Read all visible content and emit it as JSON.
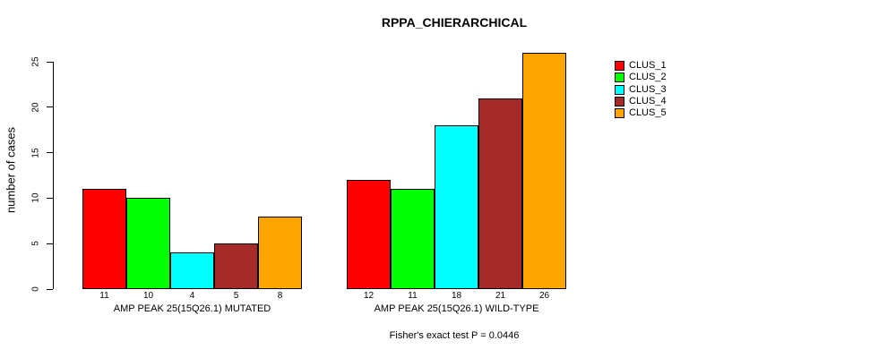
{
  "chart_data": {
    "type": "bar",
    "title": "RPPA_CHIERARCHICAL",
    "ylabel": "number of cases",
    "xlabel": "",
    "note": "Fisher's exact test P = 0.0446",
    "ylim": [
      0,
      26
    ],
    "yticks": [
      0,
      5,
      10,
      15,
      20,
      25
    ],
    "grid": false,
    "legend_position": "right",
    "categories": [
      "AMP PEAK 25(15Q26.1) MUTATED",
      "AMP PEAK 25(15Q26.1) WILD-TYPE"
    ],
    "series": [
      {
        "name": "CLUS_1",
        "color": "#FF0000",
        "values": [
          11,
          12
        ]
      },
      {
        "name": "CLUS_2",
        "color": "#00FF00",
        "values": [
          10,
          11
        ]
      },
      {
        "name": "CLUS_3",
        "color": "#00FFFF",
        "values": [
          4,
          18
        ]
      },
      {
        "name": "CLUS_4",
        "color": "#A52A2A",
        "values": [
          5,
          21
        ]
      },
      {
        "name": "CLUS_5",
        "color": "#FFA500",
        "values": [
          8,
          26
        ]
      }
    ]
  }
}
